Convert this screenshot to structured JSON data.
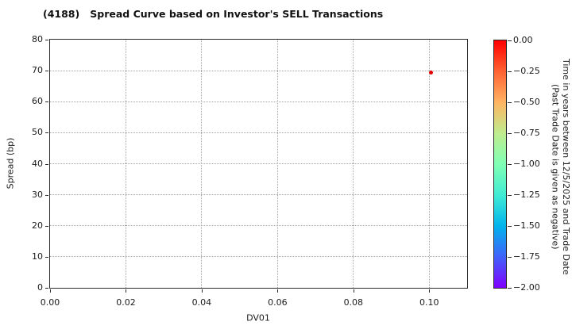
{
  "chart_data": {
    "type": "scatter",
    "title": "(4188)   Spread Curve based on Investor's SELL Transactions",
    "xlabel": "DV01",
    "ylabel": "Spread (bp)",
    "xlim": [
      0.0,
      0.11
    ],
    "ylim": [
      0,
      80
    ],
    "grid": true,
    "grid_style": "dotted",
    "xticks": [
      {
        "value": 0.0,
        "label": "0.00"
      },
      {
        "value": 0.02,
        "label": "0.02"
      },
      {
        "value": 0.04,
        "label": "0.04"
      },
      {
        "value": 0.06,
        "label": "0.06"
      },
      {
        "value": 0.08,
        "label": "0.08"
      },
      {
        "value": 0.1,
        "label": "0.10"
      }
    ],
    "yticks": [
      {
        "value": 0,
        "label": "0"
      },
      {
        "value": 10,
        "label": "10"
      },
      {
        "value": 20,
        "label": "20"
      },
      {
        "value": 30,
        "label": "30"
      },
      {
        "value": 40,
        "label": "40"
      },
      {
        "value": 50,
        "label": "50"
      },
      {
        "value": 60,
        "label": "60"
      },
      {
        "value": 70,
        "label": "70"
      },
      {
        "value": 80,
        "label": "80"
      }
    ],
    "points": [
      {
        "x": 0.1004,
        "y": 69.4,
        "colorbar_value": 0.0,
        "color": "#e50000"
      }
    ],
    "colorbar": {
      "label_line1": "Time in years between 12/5/2025 and Trade Date",
      "label_line2": "(Past Trade Date is given as negative)",
      "vmax": 0.0,
      "vmin": -2.0,
      "ticks": [
        {
          "value": 0.0,
          "label": "0.00"
        },
        {
          "value": -0.25,
          "label": "−0.25"
        },
        {
          "value": -0.5,
          "label": "−0.50"
        },
        {
          "value": -0.75,
          "label": "−0.75"
        },
        {
          "value": -1.0,
          "label": "−1.00"
        },
        {
          "value": -1.25,
          "label": "−1.25"
        },
        {
          "value": -1.5,
          "label": "−1.50"
        },
        {
          "value": -1.75,
          "label": "−1.75"
        },
        {
          "value": -2.0,
          "label": "−2.00"
        }
      ],
      "colormap": "rainbow-reversed",
      "gradient_top_to_bottom": [
        "#ff0000",
        "#ff6232",
        "#ffb462",
        "#bfec8e",
        "#80ffb4",
        "#40ecd4",
        "#00b4ec",
        "#4062fa",
        "#8000ff"
      ]
    }
  }
}
